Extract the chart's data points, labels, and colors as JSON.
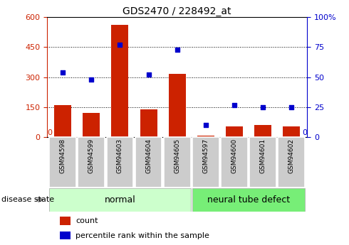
{
  "title": "GDS2470 / 228492_at",
  "samples": [
    "GSM94598",
    "GSM94599",
    "GSM94603",
    "GSM94604",
    "GSM94605",
    "GSM94597",
    "GSM94600",
    "GSM94601",
    "GSM94602"
  ],
  "count_values": [
    160,
    120,
    560,
    140,
    315,
    8,
    55,
    60,
    55
  ],
  "percentile_values": [
    54,
    48,
    77,
    52,
    73,
    10,
    27,
    25,
    25
  ],
  "bar_color": "#cc2200",
  "dot_color": "#0000cc",
  "normal_indices": [
    0,
    1,
    2,
    3,
    4
  ],
  "defect_indices": [
    5,
    6,
    7,
    8
  ],
  "normal_label": "normal",
  "defect_label": "neural tube defect",
  "disease_state_label": "disease state",
  "count_label": "count",
  "percentile_label": "percentile rank within the sample",
  "ylim_left": [
    0,
    600
  ],
  "ylim_right": [
    0,
    100
  ],
  "yticks_left": [
    0,
    150,
    300,
    450,
    600
  ],
  "yticks_right": [
    0,
    25,
    50,
    75,
    100
  ],
  "tick_label_color_left": "#cc2200",
  "tick_label_color_right": "#0000cc",
  "normal_bg": "#ccffcc",
  "defect_bg": "#77ee77",
  "xtick_bg": "#cccccc",
  "grid_yticks": [
    150,
    300,
    450
  ]
}
